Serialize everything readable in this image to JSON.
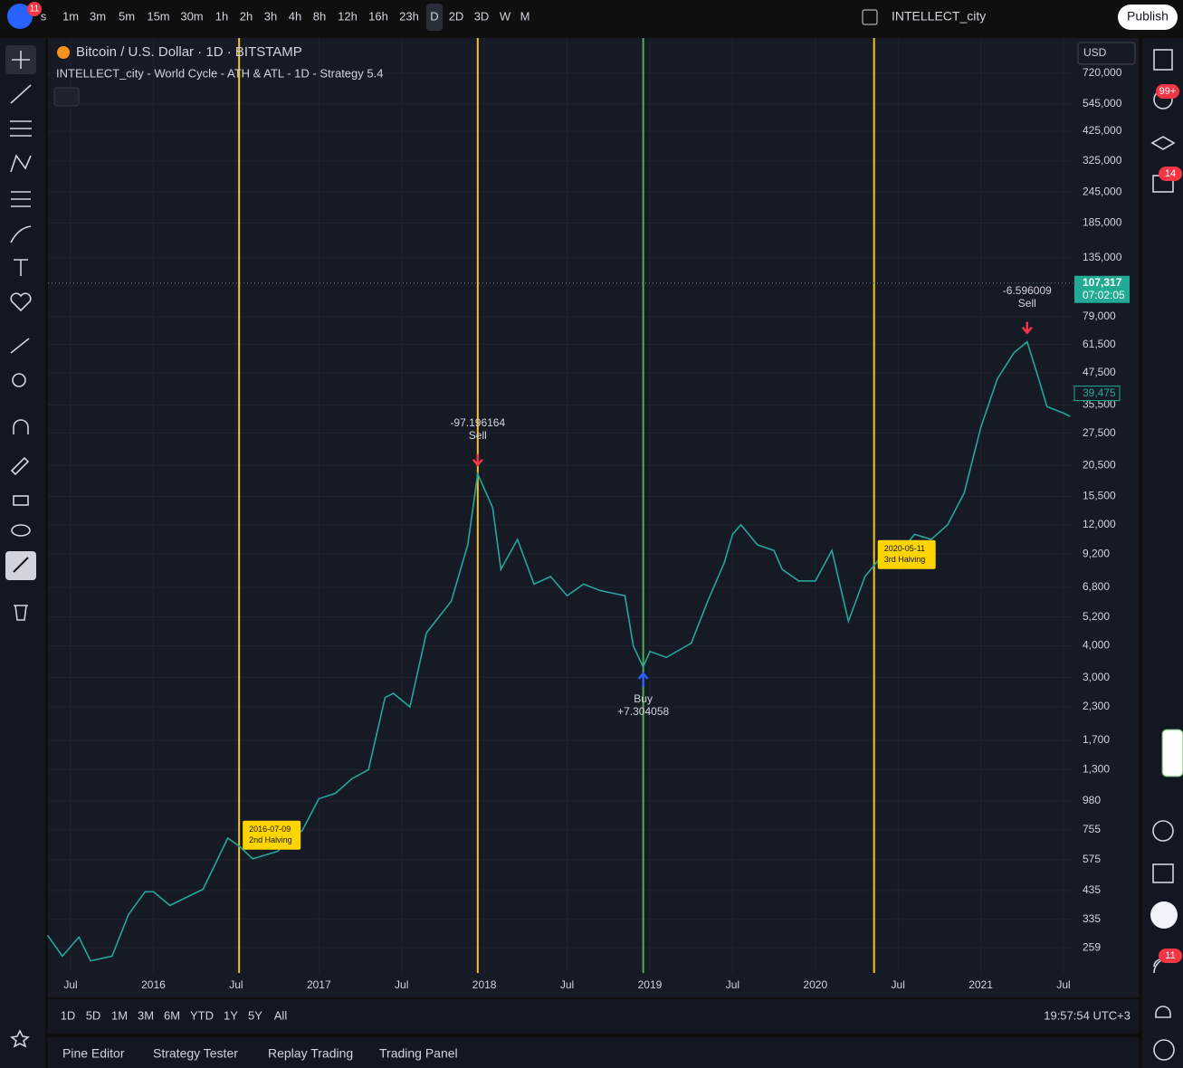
{
  "toolbar": {
    "badge": "11",
    "intervals": [
      "s",
      "1m",
      "3m",
      "5m",
      "15m",
      "30m",
      "1h",
      "2h",
      "3h",
      "4h",
      "8h",
      "12h",
      "16h",
      "23h",
      "D",
      "2D",
      "3D",
      "W",
      "M"
    ],
    "layout_name": "INTELLECT_city",
    "publish": "Publish"
  },
  "right_badges": [
    "99+",
    "14",
    "11"
  ],
  "chart_data": {
    "type": "line",
    "title": "Bitcoin / U.S. Dollar · 1D · BITSTAMP",
    "subtitle": "INTELLECT_city - World Cycle - ATH & ATL - 1D - Strategy 5.4",
    "currency": "USD",
    "log_scale": true,
    "grid": true,
    "color": "#26a69a",
    "x": [
      2015.36,
      2015.45,
      2015.55,
      2015.62,
      2015.75,
      2015.85,
      2015.95,
      2016.0,
      2016.1,
      2016.3,
      2016.45,
      2016.52,
      2016.6,
      2016.75,
      2016.9,
      2017.0,
      2017.1,
      2017.2,
      2017.3,
      2017.4,
      2017.45,
      2017.55,
      2017.65,
      2017.8,
      2017.9,
      2017.96,
      2018.05,
      2018.1,
      2018.2,
      2018.3,
      2018.4,
      2018.5,
      2018.6,
      2018.7,
      2018.85,
      2018.9,
      2018.96,
      2019.0,
      2019.1,
      2019.25,
      2019.35,
      2019.45,
      2019.5,
      2019.55,
      2019.65,
      2019.75,
      2019.8,
      2019.9,
      2020.0,
      2020.1,
      2020.2,
      2020.3,
      2020.4,
      2020.5,
      2020.6,
      2020.7,
      2020.8,
      2020.9,
      2021.0,
      2021.1,
      2021.2,
      2021.28,
      2021.35,
      2021.4,
      2021.5,
      2021.54
    ],
    "values": [
      290,
      240,
      285,
      230,
      240,
      350,
      430,
      430,
      380,
      440,
      700,
      650,
      580,
      620,
      750,
      1000,
      1050,
      1200,
      1300,
      2500,
      2600,
      2300,
      4500,
      6000,
      10000,
      19000,
      14000,
      8000,
      10500,
      7000,
      7500,
      6300,
      7000,
      6600,
      6300,
      4000,
      3300,
      3800,
      3600,
      4100,
      6000,
      8500,
      11000,
      12000,
      10000,
      9500,
      8000,
      7200,
      7200,
      9500,
      5000,
      7500,
      9000,
      9200,
      11000,
      10500,
      12000,
      16000,
      29000,
      45000,
      57000,
      63000,
      45000,
      35000,
      33000,
      32000
    ],
    "xlim": [
      2015.363,
      2021.56
    ],
    "ylim": [
      206,
      990000
    ],
    "xticks": [
      {
        "value": 2015.5,
        "label": "Jul"
      },
      2016,
      {
        "value": 2016.5,
        "label": "Jul"
      },
      2017,
      {
        "value": 2017.5,
        "label": "Jul"
      },
      2018,
      {
        "value": 2018.5,
        "label": "Jul"
      },
      2019,
      {
        "value": 2019.5,
        "label": "Jul"
      },
      2020,
      {
        "value": 2020.5,
        "label": "Jul"
      },
      2021,
      {
        "value": 2021.5,
        "label": "Jul"
      }
    ],
    "yticks": [
      {
        "value": 720000,
        "label": "720,000"
      },
      {
        "value": 545000,
        "label": "545,000"
      },
      {
        "value": 425000,
        "label": "425,000"
      },
      {
        "value": 325000,
        "label": "325,000"
      },
      {
        "value": 245000,
        "label": "245,000"
      },
      {
        "value": 185000,
        "label": "185,000"
      },
      {
        "value": 135000,
        "label": "135,000"
      },
      {
        "value": 79000,
        "label": "79,000"
      },
      {
        "value": 61500,
        "label": "61,500"
      },
      {
        "value": 47500,
        "label": "47,500"
      },
      {
        "value": 35500,
        "label": "35,500"
      },
      {
        "value": 27500,
        "label": "27,500"
      },
      {
        "value": 20500,
        "label": "20,500"
      },
      {
        "value": 15500,
        "label": "15,500"
      },
      {
        "value": 12000,
        "label": "12,000"
      },
      {
        "value": 9200,
        "label": "9,200"
      },
      {
        "value": 6800,
        "label": "6,800"
      },
      {
        "value": 5200,
        "label": "5,200"
      },
      {
        "value": 4000,
        "label": "4,000"
      },
      {
        "value": 3000,
        "label": "3,000"
      },
      {
        "value": 2300,
        "label": "2,300"
      },
      {
        "value": 1700,
        "label": "1,700"
      },
      {
        "value": 1300,
        "label": "1,300"
      },
      {
        "value": 980,
        "label": "980"
      },
      {
        "value": 755,
        "label": "755"
      },
      {
        "value": 575,
        "label": "575"
      },
      {
        "value": 435,
        "label": "435"
      },
      {
        "value": 335,
        "label": "335"
      },
      {
        "value": 259,
        "label": "259"
      }
    ],
    "events": [
      {
        "x": 2016.518,
        "color": "#f5c518",
        "date": "2016-07-09",
        "label": "2nd Halving"
      },
      {
        "x": 2017.96,
        "color": "#f5c518"
      },
      {
        "x": 2018.96,
        "color": "#4caf50"
      },
      {
        "x": 2020.355,
        "color": "#f5c518",
        "date": "2020-05-11",
        "label": "3rd Halving"
      }
    ],
    "signals": [
      {
        "x": 2017.96,
        "side": "Sell",
        "amount": "-97.196164"
      },
      {
        "x": 2018.96,
        "side": "Buy",
        "amount": "+7.304058"
      },
      {
        "x": 2021.28,
        "side": "Sell",
        "amount": "-6.596009"
      }
    ],
    "price_line": {
      "value": 107317,
      "label": "107,317",
      "countdown": "07:02:05"
    },
    "last_price": {
      "value": 39475,
      "label": "39,475"
    }
  },
  "bottom_bar": {
    "ranges": [
      "1D",
      "5D",
      "1M",
      "3M",
      "6M",
      "YTD",
      "1Y",
      "5Y",
      "All"
    ],
    "clock": "19:57:54 UTC+3"
  },
  "tabs": [
    "Pine Editor",
    "Strategy Tester",
    "Replay Trading",
    "Trading Panel"
  ]
}
